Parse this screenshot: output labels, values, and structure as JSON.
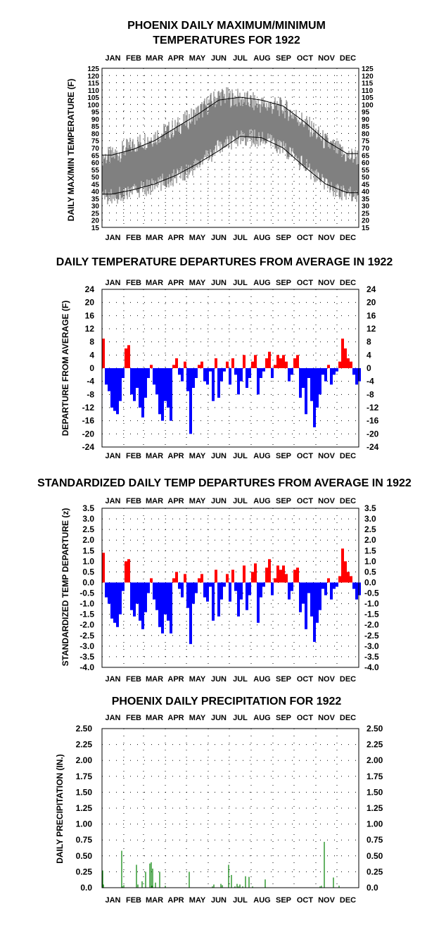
{
  "months": [
    "JAN",
    "FEB",
    "MAR",
    "APR",
    "MAY",
    "JUN",
    "JUL",
    "AUG",
    "SEP",
    "OCT",
    "NOV",
    "DEC"
  ],
  "chart_data": [
    {
      "type": "area",
      "title_lines": [
        "PHOENIX DAILY MAXIMUM/MINIMUM",
        "TEMPERATURES FOR 1922"
      ],
      "ylabel": "DAILY MAX/MIN TEMPERATURE (F)",
      "x_categories": [
        "JAN",
        "FEB",
        "MAR",
        "APR",
        "MAY",
        "JUN",
        "JUL",
        "AUG",
        "SEP",
        "OCT",
        "NOV",
        "DEC"
      ],
      "ylim": [
        15,
        125
      ],
      "yticks": [
        15,
        20,
        25,
        30,
        35,
        40,
        45,
        50,
        55,
        60,
        65,
        70,
        75,
        80,
        85,
        90,
        95,
        100,
        105,
        110,
        115,
        120,
        125
      ],
      "grid": true,
      "colors": {
        "observed_range": "#808080",
        "normals": "#000000"
      },
      "series": [
        {
          "name": "daily max (observed, monthly approx)",
          "values": [
            64,
            72,
            78,
            84,
            94,
            106,
            104,
            100,
            98,
            88,
            74,
            64
          ]
        },
        {
          "name": "daily min (observed, monthly approx)",
          "values": [
            36,
            40,
            44,
            50,
            58,
            70,
            78,
            76,
            70,
            58,
            44,
            38
          ]
        },
        {
          "name": "normal max",
          "values": [
            65,
            69,
            75,
            84,
            93,
            103,
            105,
            103,
            99,
            88,
            75,
            66
          ]
        },
        {
          "name": "normal min",
          "values": [
            38,
            41,
            45,
            51,
            59,
            68,
            78,
            77,
            70,
            57,
            45,
            39
          ]
        }
      ]
    },
    {
      "type": "bar",
      "title": "DAILY TEMPERATURE DEPARTURES FROM AVERAGE IN 1922",
      "ylabel": "DEPARTURE FROM AVERAGE (F)",
      "x_categories": [
        "JAN",
        "FEB",
        "MAR",
        "APR",
        "MAY",
        "JUN",
        "JUL",
        "AUG",
        "SEP",
        "OCT",
        "NOV",
        "DEC"
      ],
      "ylim": [
        -24,
        24
      ],
      "yticks": [
        -24,
        -20,
        -16,
        -12,
        -8,
        -4,
        0,
        4,
        8,
        12,
        16,
        20,
        24
      ],
      "grid": true,
      "colors": {
        "positive": "#ff0000",
        "negative": "#0000ff"
      },
      "days": [
        1,
        5,
        9,
        13,
        17,
        21,
        25,
        29,
        33,
        37,
        41,
        45,
        49,
        53,
        57,
        61,
        65,
        69,
        73,
        77,
        81,
        85,
        89,
        93,
        97,
        101,
        105,
        109,
        113,
        117,
        121,
        125,
        129,
        133,
        137,
        141,
        145,
        149,
        153,
        157,
        161,
        165,
        169,
        173,
        177,
        181,
        185,
        189,
        193,
        197,
        201,
        205,
        209,
        213,
        217,
        221,
        225,
        229,
        233,
        237,
        241,
        245,
        249,
        253,
        257,
        261,
        265,
        269,
        273,
        277,
        281,
        285,
        289,
        293,
        297,
        301,
        305,
        309,
        313,
        317,
        321,
        325,
        329,
        333,
        337,
        341,
        345,
        349,
        353,
        357,
        361,
        365
      ],
      "values": [
        9,
        -5,
        -7,
        -12,
        -13,
        -14,
        -10,
        -3,
        6,
        7,
        -8,
        -10,
        -6,
        -12,
        -15,
        -9,
        -3,
        1,
        -5,
        -8,
        -14,
        -16,
        -10,
        -12,
        -16,
        1,
        3,
        -2,
        -4,
        2,
        -7,
        -20,
        -6,
        -3,
        1,
        2,
        -4,
        -5,
        -1,
        -10,
        3,
        -9,
        -4,
        -1,
        2,
        -5,
        3,
        -2,
        -8,
        -4,
        4,
        -6,
        -3,
        2,
        4,
        -8,
        -3,
        -1,
        3,
        5,
        -3,
        1,
        4,
        3,
        4,
        2,
        -4,
        -2,
        3,
        4,
        -9,
        -6,
        -14,
        -3,
        -10,
        -18,
        -12,
        -8,
        -2,
        -4,
        1,
        -5,
        -2,
        -1,
        2,
        9,
        6,
        3,
        2,
        -2,
        -5,
        -4
      ]
    },
    {
      "type": "bar",
      "title": "STANDARDIZED DAILY TEMP DEPARTURES FROM AVERAGE IN 1922",
      "ylabel": "STANDARDIZED TEMP DEPARTURE (z)",
      "x_categories": [
        "JAN",
        "FEB",
        "MAR",
        "APR",
        "MAY",
        "JUN",
        "JUL",
        "AUG",
        "SEP",
        "OCT",
        "NOV",
        "DEC"
      ],
      "ylim": [
        -4.0,
        3.5
      ],
      "yticks": [
        -4.0,
        -3.5,
        -3.0,
        -2.5,
        -2.0,
        -1.5,
        -1.0,
        -0.5,
        0.0,
        0.5,
        1.0,
        1.5,
        2.0,
        2.5,
        3.0,
        3.5
      ],
      "grid": true,
      "colors": {
        "positive": "#ff0000",
        "negative": "#0000ff"
      },
      "days": [
        1,
        5,
        9,
        13,
        17,
        21,
        25,
        29,
        33,
        37,
        41,
        45,
        49,
        53,
        57,
        61,
        65,
        69,
        73,
        77,
        81,
        85,
        89,
        93,
        97,
        101,
        105,
        109,
        113,
        117,
        121,
        125,
        129,
        133,
        137,
        141,
        145,
        149,
        153,
        157,
        161,
        165,
        169,
        173,
        177,
        181,
        185,
        189,
        193,
        197,
        201,
        205,
        209,
        213,
        217,
        221,
        225,
        229,
        233,
        237,
        241,
        245,
        249,
        253,
        257,
        261,
        265,
        269,
        273,
        277,
        281,
        285,
        289,
        293,
        297,
        301,
        305,
        309,
        313,
        317,
        321,
        325,
        329,
        333,
        337,
        341,
        345,
        349,
        353,
        357,
        361,
        365
      ],
      "values": [
        1.4,
        -0.7,
        -1.0,
        -1.7,
        -1.9,
        -2.1,
        -1.5,
        -0.4,
        1.0,
        1.1,
        -1.3,
        -1.6,
        -1.0,
        -1.8,
        -2.2,
        -1.4,
        -0.5,
        0.2,
        -0.8,
        -1.3,
        -2.1,
        -2.4,
        -1.5,
        -1.8,
        -2.4,
        0.2,
        0.5,
        -0.3,
        -0.7,
        0.4,
        -1.2,
        -2.9,
        -1.0,
        -0.5,
        0.2,
        0.4,
        -0.7,
        -0.9,
        -0.2,
        -1.8,
        0.6,
        -1.6,
        -0.8,
        -0.2,
        0.4,
        -0.9,
        0.6,
        -0.4,
        -1.6,
        -0.8,
        0.8,
        -1.3,
        -0.6,
        0.5,
        0.9,
        -1.9,
        -0.7,
        -0.2,
        0.7,
        1.1,
        -0.6,
        0.2,
        0.8,
        0.6,
        0.8,
        0.4,
        -0.8,
        -0.4,
        0.6,
        0.7,
        -1.4,
        -1.0,
        -2.2,
        -0.5,
        -1.6,
        -2.8,
        -1.9,
        -1.3,
        -0.3,
        -0.6,
        0.2,
        -0.8,
        -0.3,
        -0.2,
        0.3,
        1.6,
        1.0,
        0.5,
        0.3,
        -0.3,
        -0.8,
        -0.6
      ]
    },
    {
      "type": "bar",
      "title": "PHOENIX DAILY PRECIPITATION FOR 1922",
      "ylabel": "DAILY PRECIPITATION (IN.)",
      "x_categories": [
        "JAN",
        "FEB",
        "MAR",
        "APR",
        "MAY",
        "JUN",
        "JUL",
        "AUG",
        "SEP",
        "OCT",
        "NOV",
        "DEC"
      ],
      "ylim": [
        0.0,
        2.5
      ],
      "yticks": [
        0.0,
        0.25,
        0.5,
        0.75,
        1.0,
        1.25,
        1.5,
        1.75,
        2.0,
        2.25,
        2.5
      ],
      "grid": true,
      "colors": {
        "bars": "#008000"
      },
      "days": [
        2,
        3,
        29,
        30,
        32,
        50,
        52,
        58,
        63,
        69,
        71,
        72,
        73,
        77,
        83,
        91,
        125,
        158,
        160,
        170,
        172,
        181,
        185,
        190,
        193,
        195,
        197,
        201,
        205,
        210,
        215,
        233,
        311,
        313,
        317,
        330,
        338
      ],
      "values": [
        0.27,
        0.05,
        0.58,
        0.02,
        0.04,
        0.36,
        0.05,
        0.1,
        0.25,
        0.38,
        0.4,
        0.03,
        0.3,
        0.08,
        0.25,
        0.03,
        0.25,
        0.02,
        0.05,
        0.06,
        0.04,
        0.36,
        0.2,
        0.02,
        0.06,
        0.02,
        0.05,
        0.02,
        0.18,
        0.17,
        0.02,
        0.13,
        0.02,
        0.03,
        0.72,
        0.16,
        0.03
      ]
    }
  ]
}
